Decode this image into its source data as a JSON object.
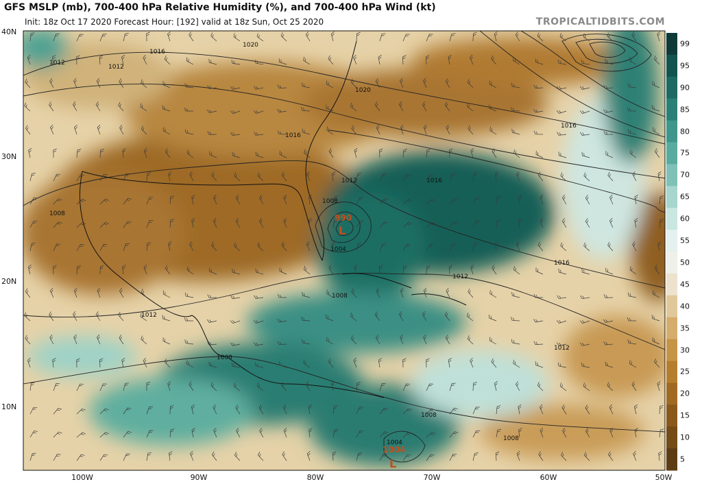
{
  "header": {
    "title": "GFS MSLP (mb), 700-400 hPa Relative Humidity (%), and 700-400 hPa Wind (kt)",
    "subtitle": "Init: 18z Oct 17 2020   Forecast Hour: [192]   valid at 18z Sun, Oct 25 2020",
    "site": "TROPICALTIDBITS.COM"
  },
  "axes": {
    "lat_labels": [
      "40N",
      "30N",
      "20N",
      "10N"
    ],
    "lon_labels": [
      "100W",
      "90W",
      "80W",
      "70W",
      "60W",
      "50W"
    ]
  },
  "colorbar": {
    "labels": [
      "99",
      "95",
      "90",
      "85",
      "80",
      "75",
      "70",
      "65",
      "60",
      "55",
      "50",
      "45",
      "40",
      "35",
      "30",
      "25",
      "20",
      "15",
      "10",
      "5"
    ],
    "colors": [
      "#0e3b38",
      "#13544f",
      "#1c6a62",
      "#2a8076",
      "#3f968a",
      "#5aab9f",
      "#7fc1b6",
      "#a6d6cd",
      "#c9e6e0",
      "#e4f1ee",
      "#f0f0ea",
      "#ede2cd",
      "#e1c89b",
      "#d4ad6d",
      "#c69447",
      "#b57e2e",
      "#a06a22",
      "#8a581b",
      "#744a17",
      "#5e3c13"
    ]
  },
  "pressure_labels": [
    "1020",
    "1016",
    "1012",
    "1008",
    "1004",
    "1012",
    "1016",
    "1020",
    "1016",
    "1008",
    "1012",
    "1016",
    "1012",
    "1012",
    "1008",
    "1008",
    "1008",
    "1008",
    "1012",
    "1016",
    "1004"
  ],
  "lows": [
    {
      "value": "990",
      "symbol": "L"
    },
    {
      "value": "1004",
      "symbol": "L"
    }
  ]
}
